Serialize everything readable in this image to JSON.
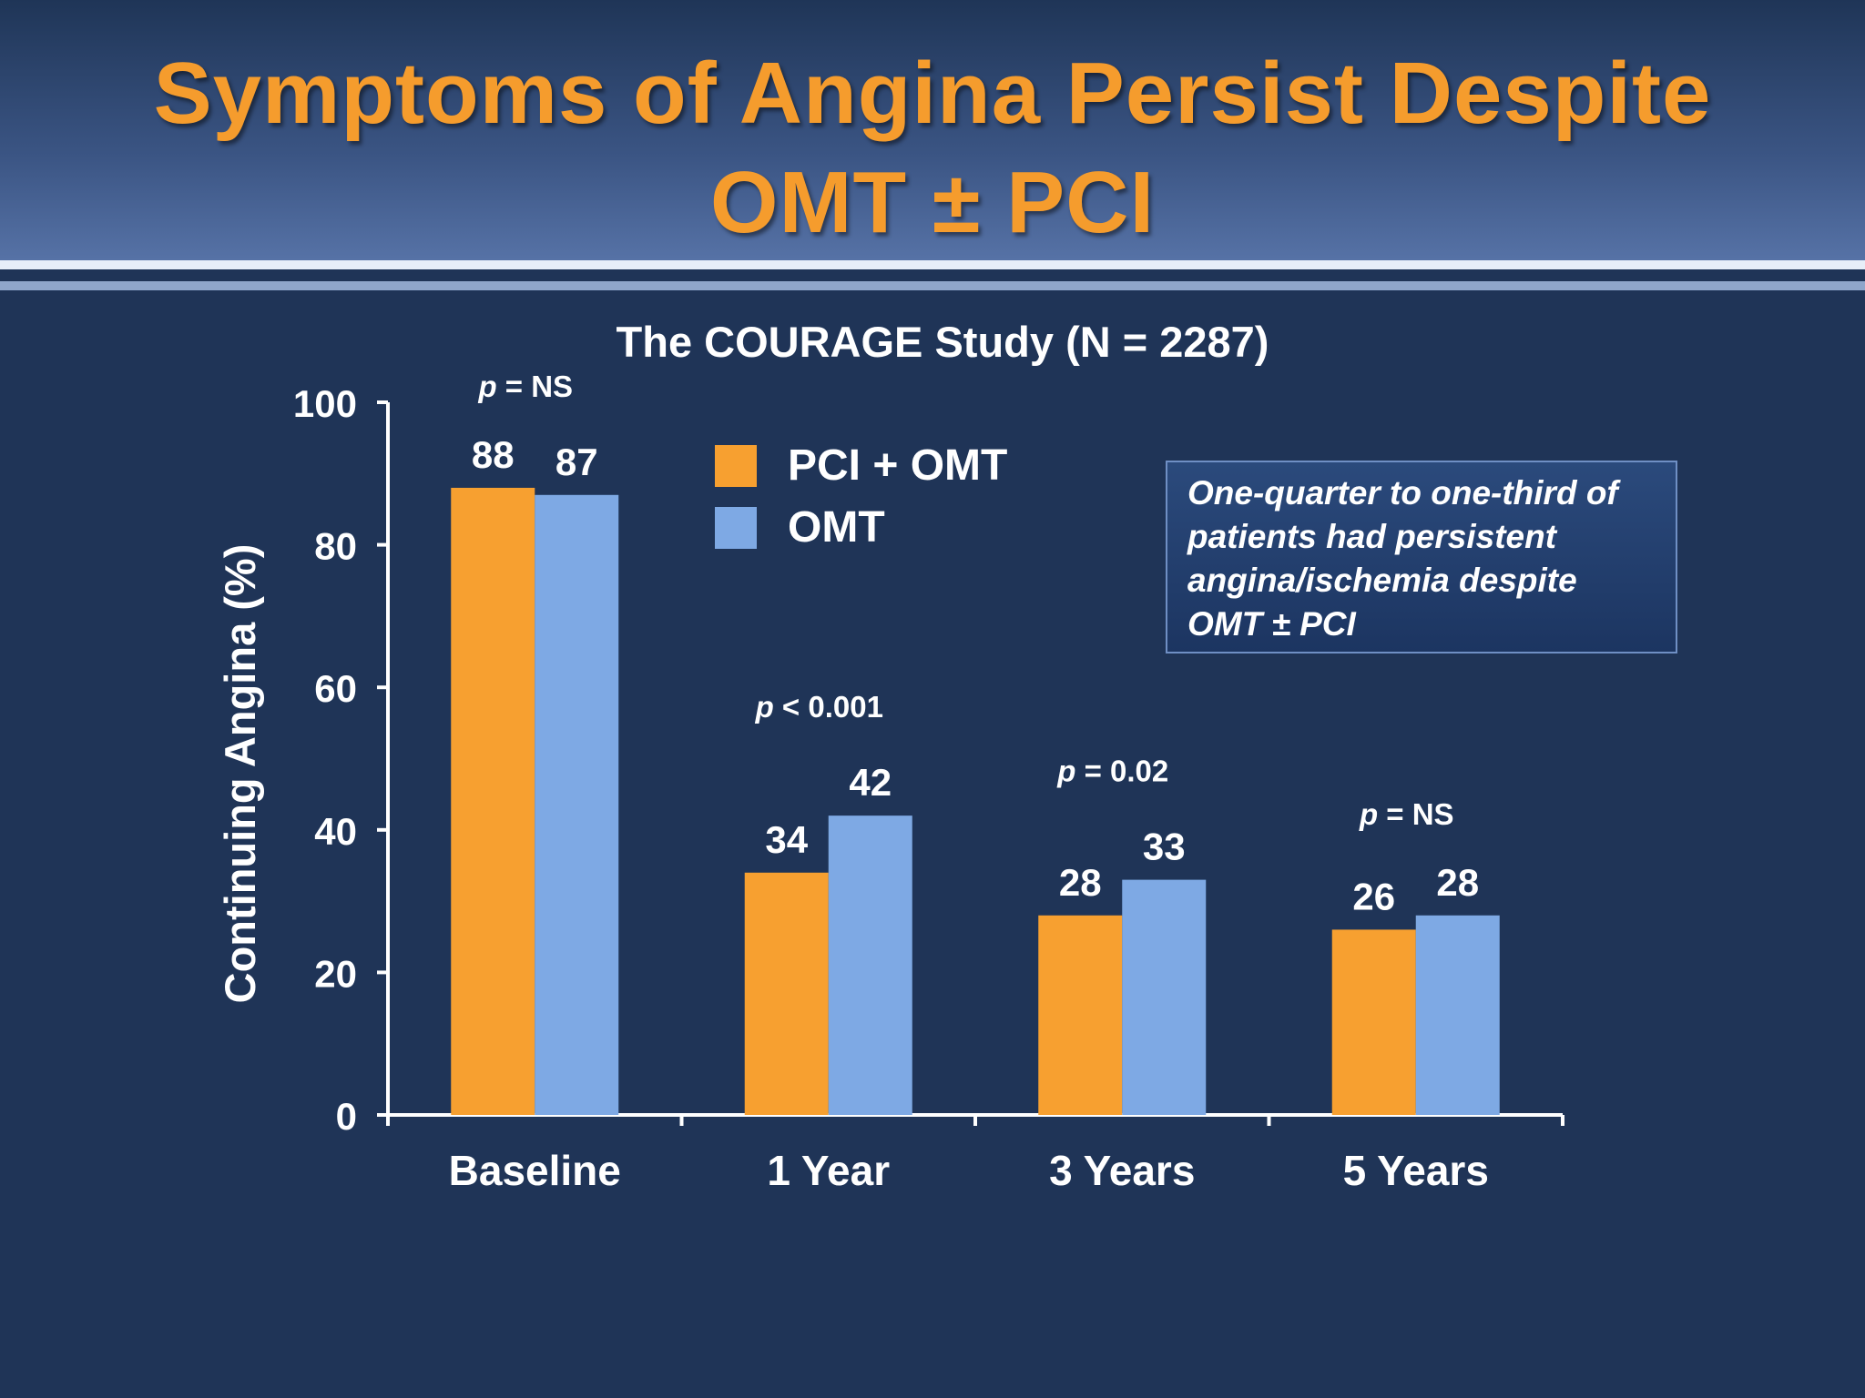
{
  "slide": {
    "title_line1": "Symptoms of Angina Persist Despite",
    "title_line2": "OMT ± PCI",
    "callout_lines": [
      "One-quarter to one-third of",
      "patients had persistent",
      "angina/ischemia despite",
      "OMT ± PCI"
    ]
  },
  "colors": {
    "background": "#1f3457",
    "title": "#f59c2d",
    "pci_omt": "#f7a030",
    "omt": "#7ea9e4",
    "axis": "#ffffff"
  },
  "chart_data": {
    "type": "bar",
    "title": "The COURAGE Study (N = 2287)",
    "ylabel": "Continuing Angina (%)",
    "xlabel": "",
    "ylim": [
      0,
      100
    ],
    "yticks": [
      0,
      20,
      40,
      60,
      80,
      100
    ],
    "grid": false,
    "legend_position": "top-center",
    "categories": [
      "Baseline",
      "1 Year",
      "3 Years",
      "5 Years"
    ],
    "series": [
      {
        "name": "PCI + OMT",
        "values": [
          88,
          34,
          28,
          26
        ]
      },
      {
        "name": "OMT",
        "values": [
          87,
          42,
          33,
          28
        ]
      }
    ],
    "p_values": [
      "NS",
      "< 0.001",
      "= 0.02",
      "NS"
    ]
  }
}
